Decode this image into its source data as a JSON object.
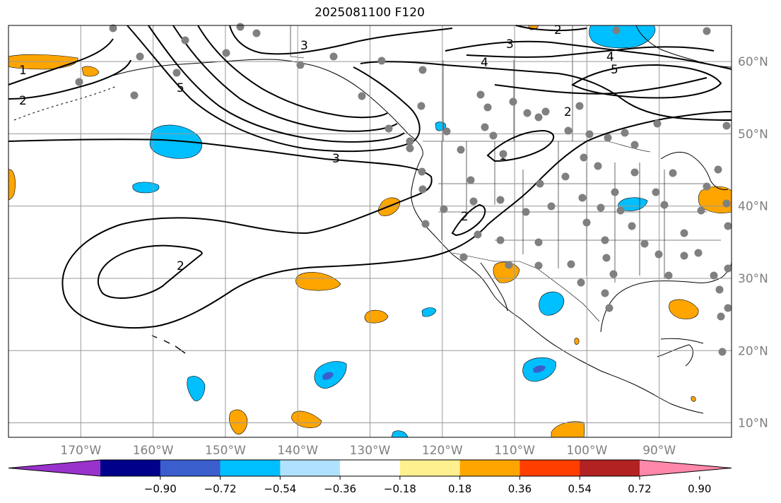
{
  "title": "2025081100 F120",
  "map": {
    "lon_range": [
      -180,
      -80
    ],
    "lat_range": [
      8,
      65
    ],
    "lon_labels": [
      "170°W",
      "160°W",
      "150°W",
      "140°W",
      "130°W",
      "120°W",
      "110°W",
      "100°W",
      "90°W"
    ],
    "lon_values": [
      -170,
      -160,
      -150,
      -140,
      -130,
      -120,
      -110,
      -100,
      -90
    ],
    "lat_labels": [
      "10°N",
      "20°N",
      "30°N",
      "40°N",
      "50°N",
      "60°N"
    ],
    "lat_values": [
      10,
      20,
      30,
      40,
      50,
      60
    ],
    "grid": true,
    "contour_labels": [
      "1",
      "2",
      "3",
      "4",
      "5"
    ]
  },
  "colorbar": {
    "ticks": [
      "−0.90",
      "−0.72",
      "−0.54",
      "−0.36",
      "−0.18",
      "0.18",
      "0.36",
      "0.54",
      "0.72",
      "0.90"
    ],
    "colors": [
      "#9932cc",
      "#00008b",
      "#3a5fcd",
      "#00bfff",
      "#b0e2ff",
      "#ffffff",
      "#fff08f",
      "#ffa500",
      "#ff3e00",
      "#b22222",
      "#ff88aa"
    ],
    "extend": "both"
  }
}
